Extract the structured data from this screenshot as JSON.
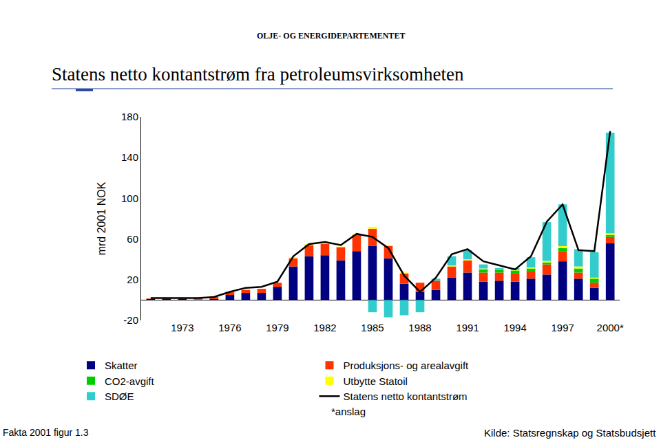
{
  "chart_data": {
    "type": "bar",
    "title": "Statens netto kontantstrøm fra petroleumsvirksomheten",
    "y_label": "mrd 2001 NOK",
    "annotations": [
      "OLJE- OG ENERGIDEPARTEMENTET",
      "*anslag",
      "Fakta 2001 figur 1.3",
      "Kilde: Statsregnskap og Statsbudsjett"
    ],
    "categories": [
      null,
      null,
      "1973",
      null,
      null,
      "1976",
      null,
      null,
      "1979",
      null,
      null,
      "1982",
      null,
      null,
      "1985",
      null,
      null,
      "1988",
      null,
      null,
      "1991",
      null,
      null,
      "1994",
      null,
      null,
      "1997",
      null,
      null,
      "2000*"
    ],
    "series": [
      {
        "name": "Skatter",
        "type": "bar",
        "color": "#000080",
        "values": [
          1,
          1,
          1,
          0.5,
          1,
          5,
          7,
          7,
          13,
          33,
          43,
          44,
          39,
          48,
          53,
          41,
          16,
          8,
          10,
          22,
          27,
          18,
          19,
          18,
          21,
          25,
          38,
          21,
          12,
          56
        ]
      },
      {
        "name": "Produksjons- og arealavgift",
        "type": "bar",
        "color": "#ff3300",
        "values": [
          0.5,
          0.5,
          0.5,
          1,
          2,
          3,
          3,
          4,
          4,
          8,
          11,
          11,
          13,
          16,
          17,
          12,
          10,
          9,
          9,
          11,
          12,
          9,
          8,
          8,
          7,
          10,
          10,
          6,
          5,
          6
        ]
      },
      {
        "name": "CO2-avgift",
        "type": "bar",
        "color": "#00cc00",
        "values": [
          0,
          0,
          0,
          0,
          0,
          0,
          0,
          0,
          0,
          0,
          0,
          0,
          0,
          0,
          0,
          0,
          0,
          0,
          0,
          0,
          0,
          3,
          3,
          3,
          3,
          2,
          3,
          4,
          4,
          2
        ]
      },
      {
        "name": "Utbytte Statoil",
        "type": "bar",
        "color": "#ffff00",
        "values": [
          0,
          0,
          0,
          0,
          0,
          0,
          0,
          0,
          0,
          1,
          1,
          1,
          0.5,
          1,
          2,
          1,
          1,
          0,
          0,
          1,
          1,
          1,
          0.5,
          0.5,
          1,
          1.5,
          2,
          2,
          1,
          1.5
        ]
      },
      {
        "name": "SDØE",
        "type": "bar",
        "color": "#33cccc",
        "values": [
          0,
          0,
          0,
          0,
          0,
          0,
          0,
          0,
          0,
          0,
          0,
          0,
          0,
          0,
          -12,
          -17,
          -15,
          -12,
          2,
          9,
          9,
          4,
          1,
          2,
          10,
          38,
          41,
          17,
          25,
          99
        ]
      },
      {
        "name": "Statens netto kontantstrøm",
        "type": "line",
        "color": "#000000",
        "values": [
          2,
          2,
          2,
          2,
          3,
          8,
          12,
          13,
          18,
          43,
          55,
          57,
          54,
          65,
          62,
          51,
          24,
          8,
          22,
          45,
          50,
          38,
          34,
          30,
          43,
          77,
          94,
          49,
          48,
          166
        ]
      }
    ],
    "stacked": true,
    "ylim": [
      -20,
      180
    ],
    "yticks": [
      -20,
      20,
      60,
      100,
      140,
      180
    ],
    "grid": false,
    "legend": "bottom"
  }
}
